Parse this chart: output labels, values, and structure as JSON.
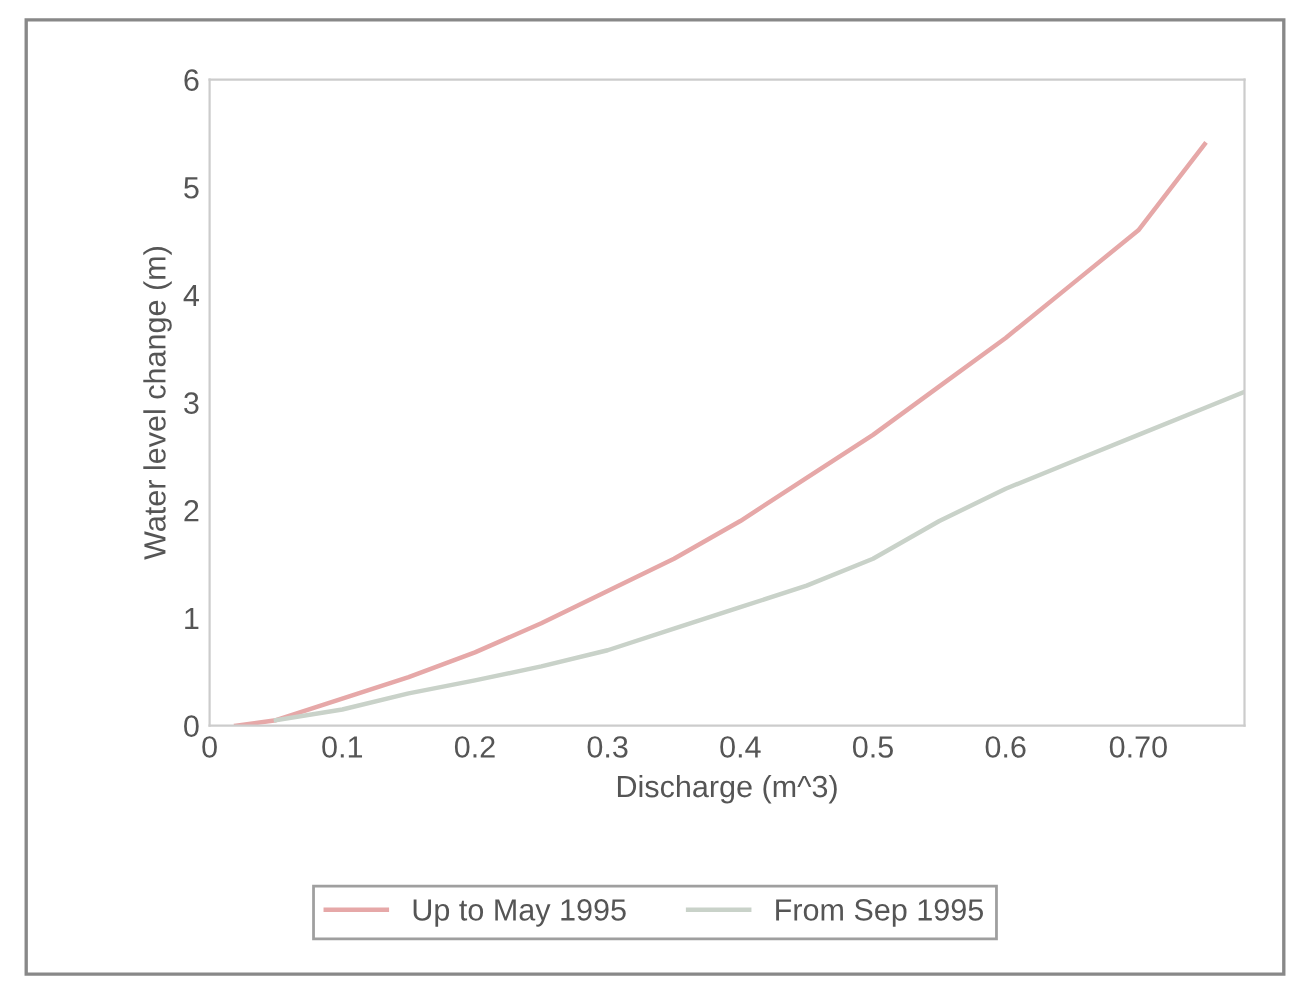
{
  "chart_data": {
    "type": "line",
    "xlabel": "Discharge (m^3)",
    "ylabel": "Water level change (m)",
    "xlim": [
      0,
      0.78
    ],
    "ylim": [
      0,
      6
    ],
    "xticks": [
      0,
      0.1,
      0.2,
      0.3,
      0.4,
      0.5,
      0.6,
      {
        "value": 0.7,
        "label": "0.70"
      }
    ],
    "yticks": [
      0,
      1,
      2,
      3,
      4,
      5,
      6
    ],
    "series": [
      {
        "name": "Up to May 1995",
        "color": "#e6a8a8",
        "x": [
          0.02,
          0.05,
          0.1,
          0.15,
          0.2,
          0.25,
          0.3,
          0.35,
          0.4,
          0.45,
          0.5,
          0.55,
          0.6,
          0.65,
          0.7,
          0.75
        ],
        "values": [
          0,
          0.05,
          0.25,
          0.45,
          0.68,
          0.95,
          1.25,
          1.55,
          1.9,
          2.3,
          2.7,
          3.15,
          3.6,
          4.1,
          4.6,
          5.4
        ]
      },
      {
        "name": "From Sep 1995",
        "color": "#c9d2c9",
        "x": [
          0.05,
          0.1,
          0.15,
          0.2,
          0.25,
          0.3,
          0.35,
          0.4,
          0.45,
          0.5,
          0.55,
          0.6,
          0.65,
          0.7,
          0.75,
          0.78
        ],
        "values": [
          0.05,
          0.15,
          0.3,
          0.42,
          0.55,
          0.7,
          0.9,
          1.1,
          1.3,
          1.55,
          1.9,
          2.2,
          2.45,
          2.7,
          2.95,
          3.1
        ]
      }
    ],
    "legend": "bottom",
    "grid": false,
    "marker": "none",
    "line_style": "solid"
  }
}
